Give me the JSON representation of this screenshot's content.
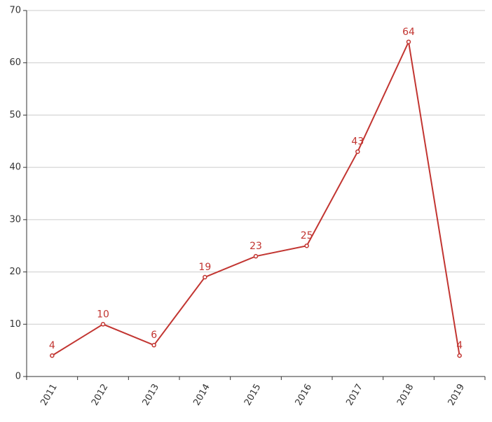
{
  "chart_data": {
    "type": "line",
    "categories": [
      "2011",
      "2012",
      "2013",
      "2014",
      "2015",
      "2016",
      "2017",
      "2018",
      "2019"
    ],
    "values": [
      4,
      10,
      6,
      19,
      23,
      25,
      43,
      64,
      4
    ],
    "color": "#c23531",
    "ylim": [
      0,
      70
    ],
    "yticks": [
      0,
      10,
      20,
      30,
      40,
      50,
      60,
      70
    ],
    "grid": true
  }
}
